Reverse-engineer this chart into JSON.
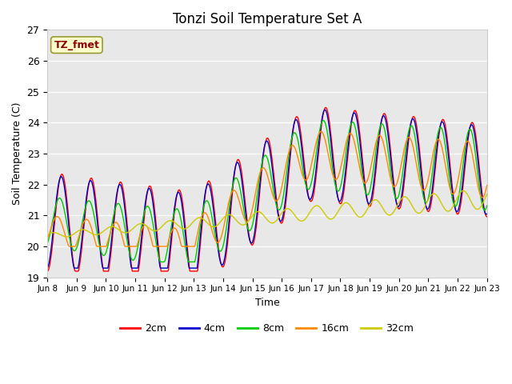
{
  "title": "Tonzi Soil Temperature Set A",
  "xlabel": "Time",
  "ylabel": "Soil Temperature (C)",
  "ylim": [
    19.0,
    27.0
  ],
  "yticks": [
    19.0,
    20.0,
    21.0,
    22.0,
    23.0,
    24.0,
    25.0,
    26.0,
    27.0
  ],
  "xtick_labels": [
    "Jun 8",
    "Jun 9",
    "Jun 10",
    "Jun 11",
    "Jun 12",
    "Jun 13",
    "Jun 14",
    "Jun 15",
    "Jun 16",
    "Jun 17",
    "Jun 18",
    "Jun 19",
    "Jun 20",
    "Jun 21",
    "Jun 22",
    "Jun 23"
  ],
  "annotation": "TZ_fmet",
  "annotation_color": "#8B0000",
  "annotation_bg": "#FFFFCC",
  "line_colors": [
    "#FF0000",
    "#0000CC",
    "#00CC00",
    "#FF8800",
    "#CCCC00"
  ],
  "line_labels": [
    "2cm",
    "4cm",
    "8cm",
    "16cm",
    "32cm"
  ],
  "background_color": "#E8E8E8",
  "title_fontsize": 12
}
